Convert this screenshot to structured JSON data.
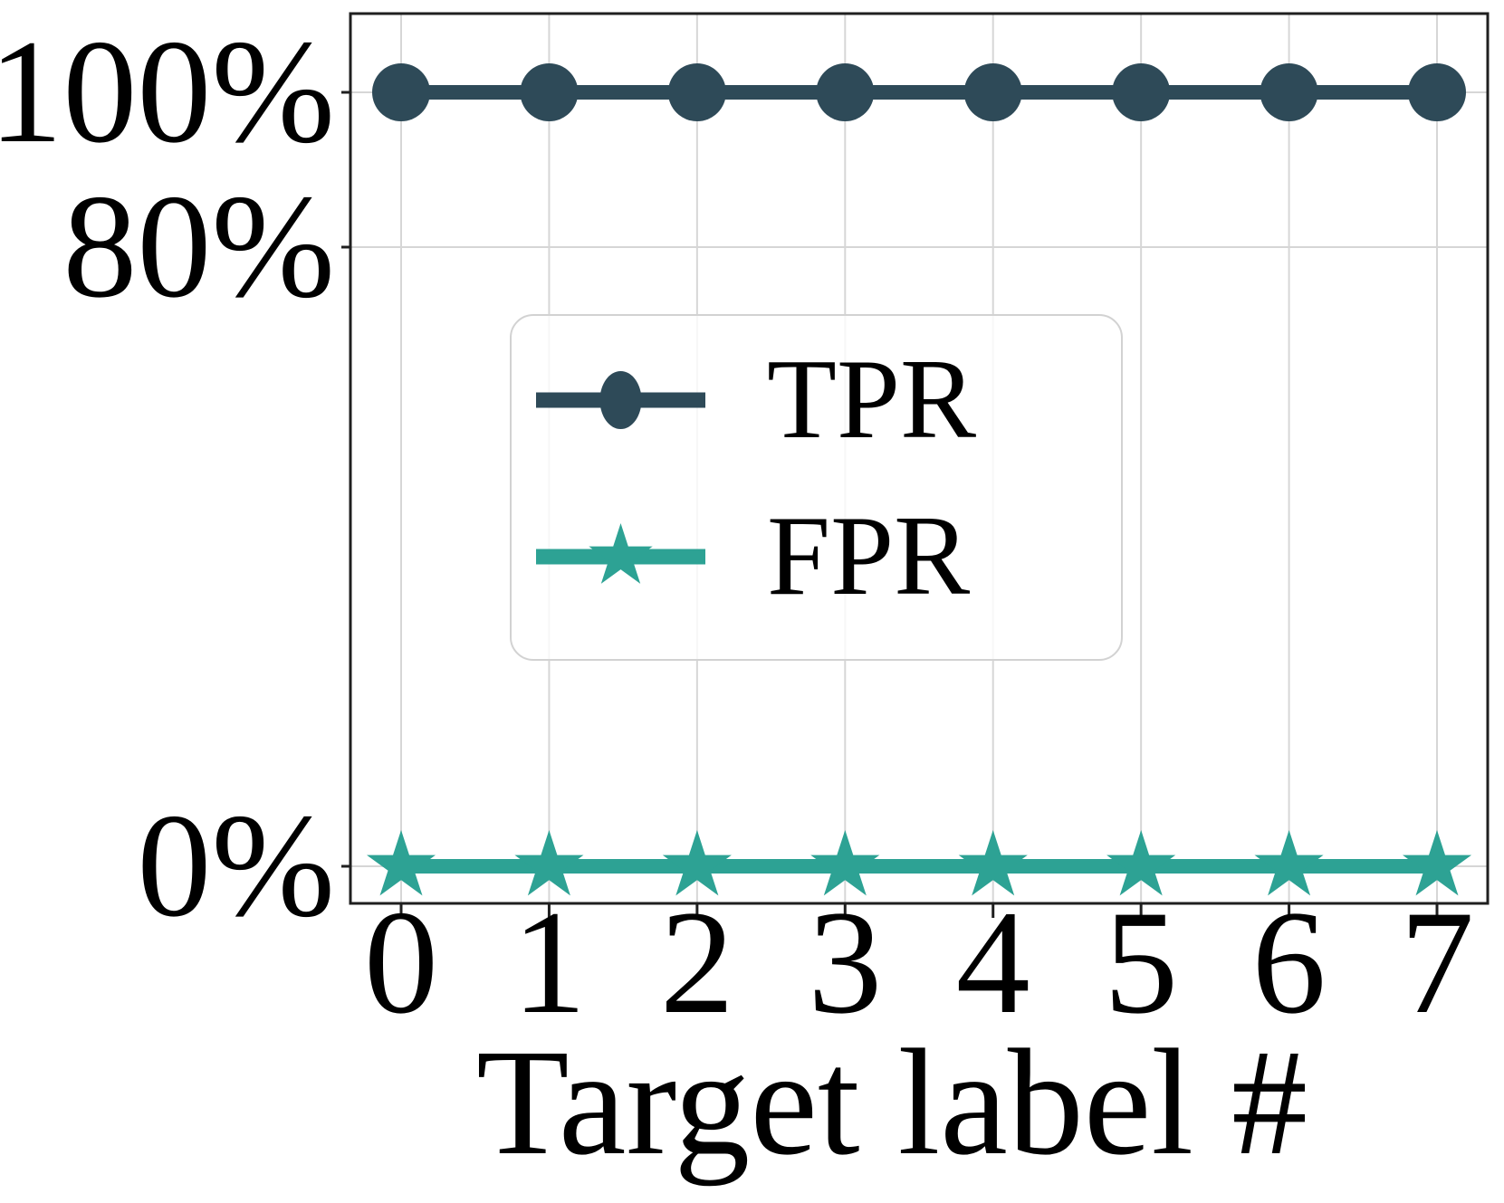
{
  "chart_data": {
    "type": "line",
    "title": "",
    "xlabel": "Target label #",
    "ylabel": "",
    "x": [
      0,
      1,
      2,
      3,
      4,
      5,
      6,
      7
    ],
    "x_tick_labels": [
      "0",
      "1",
      "2",
      "3",
      "4",
      "5",
      "6",
      "7"
    ],
    "y_ticks": [
      {
        "value": 100,
        "label": "100%"
      },
      {
        "value": 80,
        "label": "80%"
      },
      {
        "value": 0,
        "label": "0%"
      }
    ],
    "ylim_pct": [
      -5,
      110
    ],
    "grid": true,
    "legend_position": "center-inside",
    "series": [
      {
        "name": "TPR",
        "marker": "circle",
        "color": "#2e4a58",
        "values": [
          100,
          100,
          100,
          100,
          100,
          100,
          100,
          100
        ]
      },
      {
        "name": "FPR",
        "marker": "star",
        "color": "#2da294",
        "values": [
          0,
          0,
          0,
          0,
          0,
          0,
          0,
          0
        ]
      }
    ],
    "style": {
      "grid_color": "#d6d6d6",
      "spine_color": "#1f1f1f",
      "text_color": "#000000",
      "legend_border_color": "#d2d2d2"
    }
  }
}
